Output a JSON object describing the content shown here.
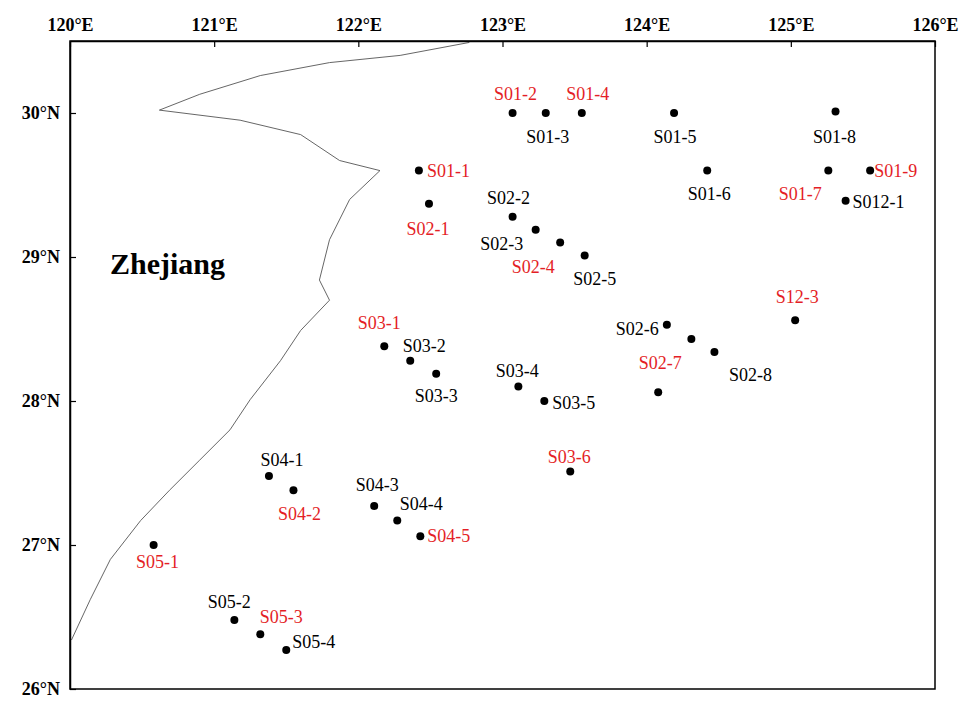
{
  "chart_data": {
    "type": "scatter",
    "marker": "circle",
    "annotations": [
      "Zhejiang"
    ],
    "xlim": [
      120,
      126
    ],
    "ylim": [
      26,
      30.5
    ],
    "xticks": [
      {
        "value": 120,
        "label": "120°E"
      },
      {
        "value": 121,
        "label": "121°E"
      },
      {
        "value": 122,
        "label": "122°E"
      },
      {
        "value": 123,
        "label": "123°E"
      },
      {
        "value": 124,
        "label": "124°E"
      },
      {
        "value": 125,
        "label": "125°E"
      },
      {
        "value": 126,
        "label": "126°E"
      }
    ],
    "yticks": [
      {
        "value": 26,
        "label": "26°N"
      },
      {
        "value": 27,
        "label": "27°N"
      },
      {
        "value": 28,
        "label": "28°N"
      },
      {
        "value": 29,
        "label": "29°N"
      },
      {
        "value": 30,
        "label": "30°N"
      }
    ],
    "labels": [
      "S01-1",
      "S01-2",
      "S01-3",
      "S01-4",
      "S01-5",
      "S01-6",
      "S01-7",
      "S01-8",
      "S01-9",
      "S012-1",
      "S02-1",
      "S02-2",
      "S02-3",
      "S02-4",
      "S02-5",
      "S02-6",
      null,
      "S02-7",
      "S02-8",
      "S12-3",
      "S03-1",
      "S03-2",
      "S03-3",
      "S03-4",
      "S03-5",
      "S03-6",
      "S04-1",
      "S04-2",
      "S04-3",
      "S04-4",
      "S04-5",
      "S05-1",
      "S05-2",
      "S05-3",
      "S05-4"
    ],
    "x": [
      122.42,
      123.07,
      123.3,
      123.55,
      124.19,
      124.42,
      125.26,
      125.31,
      125.55,
      125.38,
      122.49,
      123.07,
      123.23,
      123.4,
      123.57,
      124.14,
      124.31,
      124.08,
      124.47,
      125.03,
      122.18,
      122.36,
      122.54,
      123.11,
      123.29,
      123.47,
      121.38,
      121.55,
      122.11,
      122.27,
      122.43,
      120.58,
      121.14,
      121.32,
      121.5
    ],
    "values": [
      29.6,
      30.0,
      30.0,
      30.0,
      30.0,
      29.6,
      29.6,
      30.01,
      29.6,
      29.39,
      29.37,
      29.28,
      29.19,
      29.1,
      29.01,
      28.53,
      28.43,
      28.06,
      28.34,
      28.56,
      28.38,
      28.28,
      28.19,
      28.1,
      28.0,
      27.51,
      27.48,
      27.38,
      27.27,
      27.17,
      27.06,
      27.0,
      26.48,
      26.38,
      26.27
    ],
    "colors": [
      "#e41e26",
      "#e41e26",
      "#000000",
      "#e41e26",
      "#000000",
      "#000000",
      "#e41e26",
      "#000000",
      "#e41e26",
      "#000000",
      "#e41e26",
      "#000000",
      "#000000",
      "#e41e26",
      "#000000",
      "#000000",
      "#000000",
      "#e41e26",
      "#000000",
      "#e41e26",
      "#e41e26",
      "#000000",
      "#000000",
      "#000000",
      "#000000",
      "#e41e26",
      "#000000",
      "#e41e26",
      "#000000",
      "#000000",
      "#e41e26",
      "#e41e26",
      "#000000",
      "#e41e26",
      "#000000"
    ],
    "coastline": {
      "x": [
        122.77,
        122.29,
        121.8,
        121.32,
        120.9,
        120.62,
        121.18,
        121.6,
        121.87,
        122.15,
        121.94,
        121.8,
        121.73,
        121.8,
        121.6,
        121.46,
        121.25,
        121.11,
        120.9,
        120.69,
        120.49,
        120.28,
        120.14,
        120.01
      ],
      "y": [
        30.49,
        30.4,
        30.35,
        30.26,
        30.13,
        30.02,
        29.95,
        29.85,
        29.67,
        29.6,
        29.4,
        29.12,
        28.84,
        28.7,
        28.49,
        28.28,
        28.01,
        27.8,
        27.59,
        27.38,
        27.17,
        26.9,
        26.62,
        26.34
      ]
    }
  }
}
